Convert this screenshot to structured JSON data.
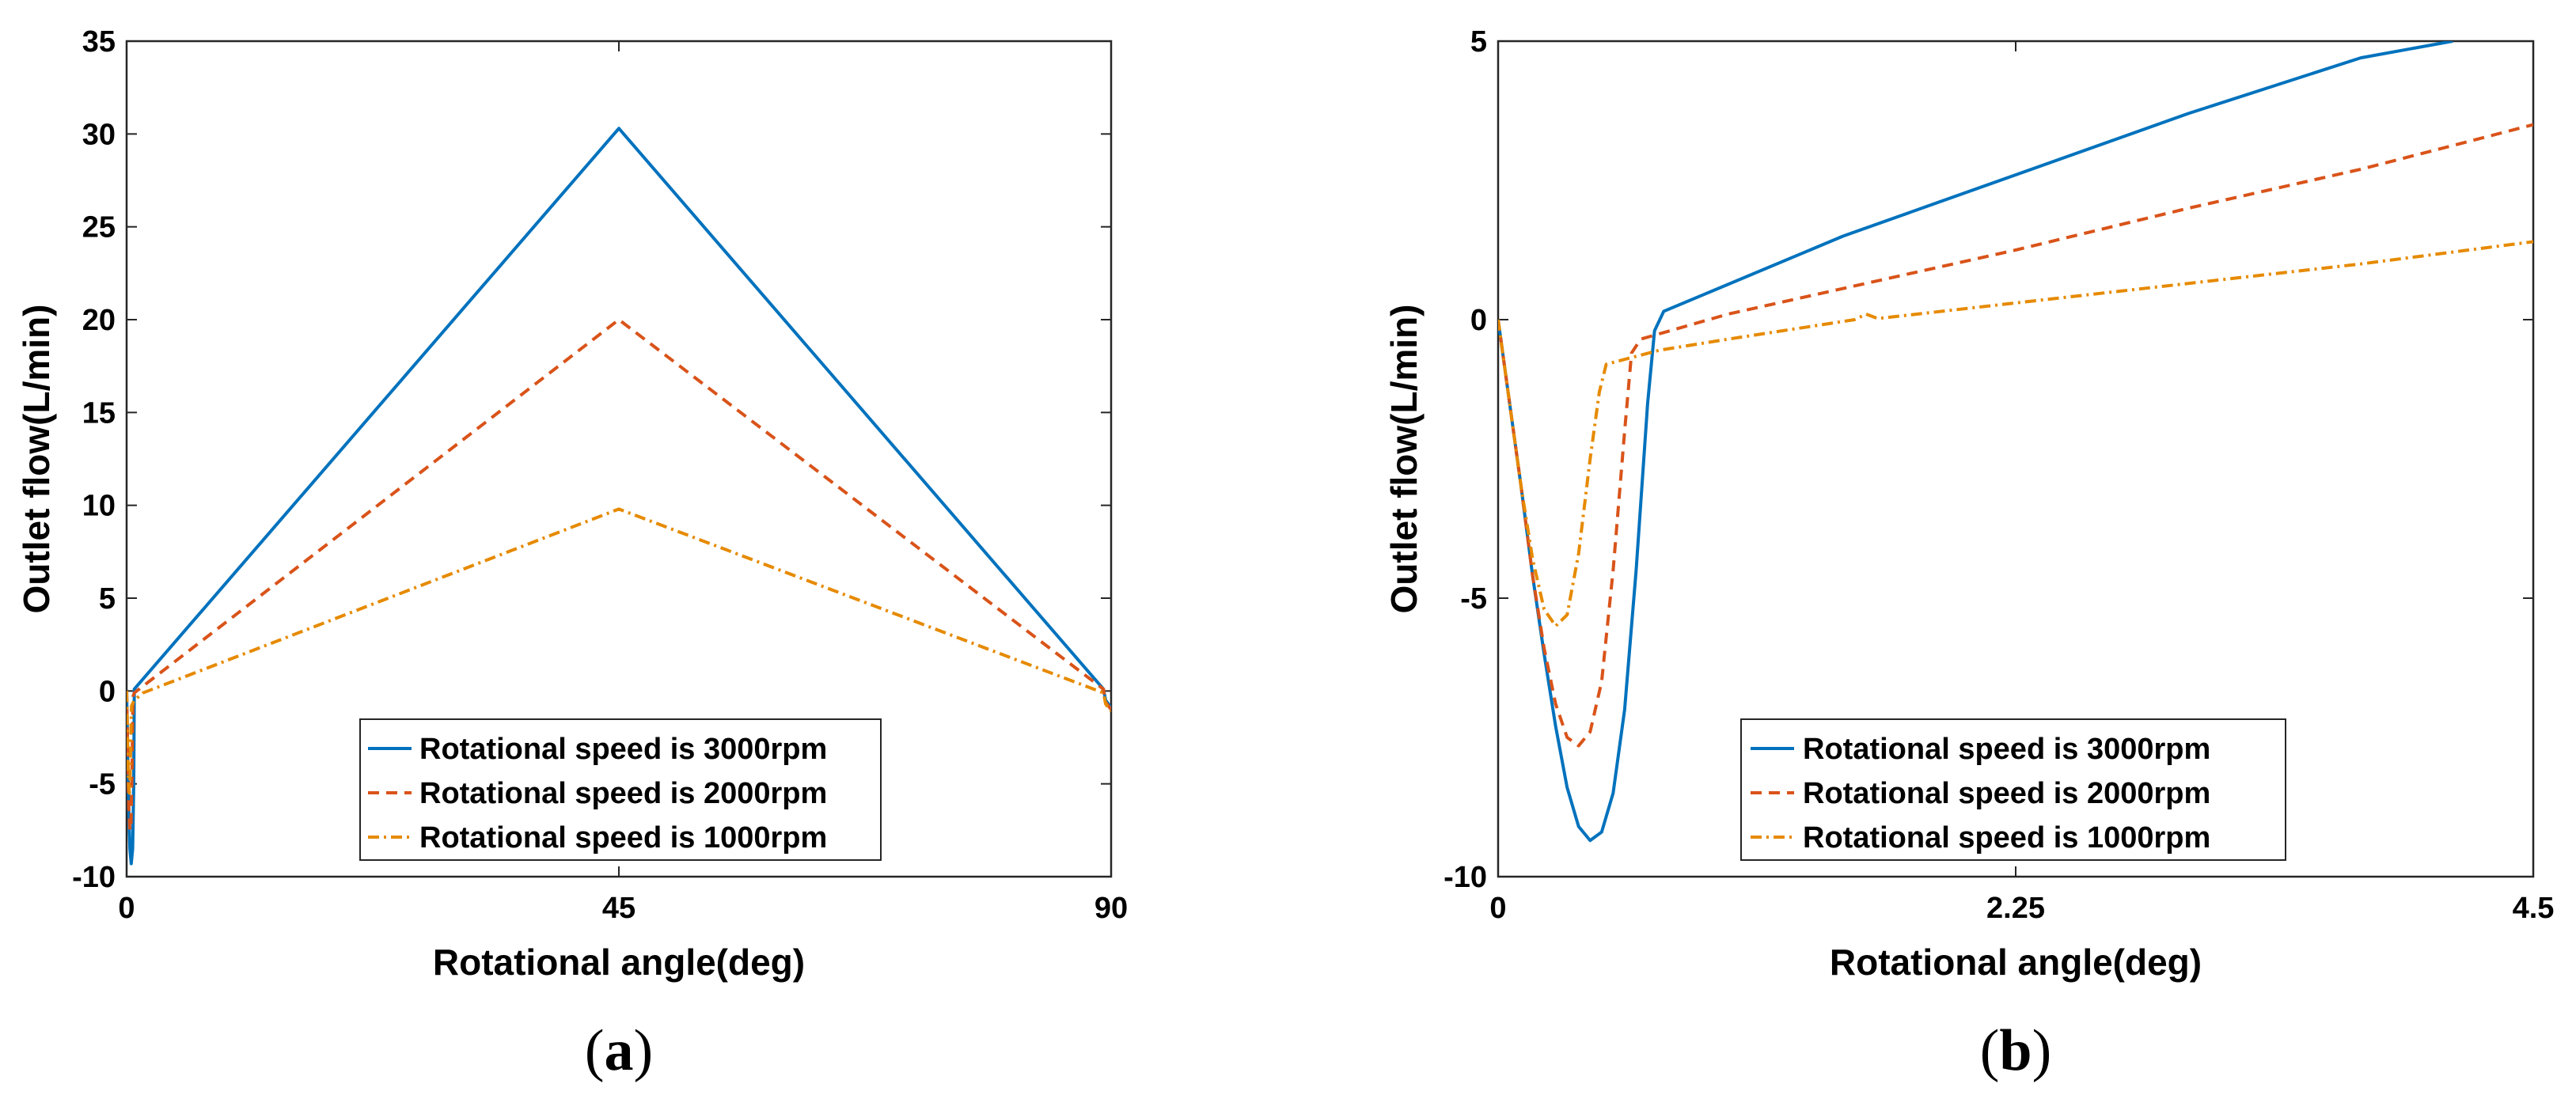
{
  "chart_data": [
    {
      "type": "line",
      "panel": "a",
      "caption": {
        "open": "(",
        "letter": "a",
        "close": ")"
      },
      "xlabel": "Rotational angle(deg)",
      "ylabel": "Outlet flow(L/min)",
      "xlim": [
        0,
        90
      ],
      "ylim": [
        -10,
        35
      ],
      "xticks": [
        0,
        45,
        90
      ],
      "xtick_labels": [
        "0",
        "45",
        "90"
      ],
      "yticks": [
        -10,
        -5,
        0,
        5,
        10,
        15,
        20,
        25,
        30,
        35
      ],
      "ytick_labels": [
        "-10",
        "-5",
        "0",
        "5",
        "10",
        "15",
        "20",
        "25",
        "30",
        "35"
      ],
      "legend_position": "bottom-center",
      "series": [
        {
          "name": "Rotational speed is 3000rpm",
          "color": "#0072BD",
          "style": "solid",
          "points": [
            [
              0,
              0
            ],
            [
              0.1,
              -3.5
            ],
            [
              0.2,
              -6.5
            ],
            [
              0.3,
              -8.5
            ],
            [
              0.42,
              -9.3
            ],
            [
              0.55,
              -8.5
            ],
            [
              0.65,
              -5
            ],
            [
              0.7,
              0.1
            ],
            [
              45,
              30.3
            ],
            [
              89.3,
              0.1
            ],
            [
              89.5,
              -0.5
            ],
            [
              90,
              -0.9
            ]
          ]
        },
        {
          "name": "Rotational speed is 2000rpm",
          "color": "#D95319",
          "style": "dashed",
          "points": [
            [
              0,
              0
            ],
            [
              0.1,
              -3.5
            ],
            [
              0.2,
              -6.3
            ],
            [
              0.3,
              -7.5
            ],
            [
              0.4,
              -7.2
            ],
            [
              0.5,
              -4
            ],
            [
              0.58,
              -0.3
            ],
            [
              0.7,
              -0.1
            ],
            [
              45,
              20
            ],
            [
              89.3,
              0.1
            ],
            [
              89.5,
              -0.6
            ],
            [
              90,
              -1
            ]
          ]
        },
        {
          "name": "Rotational speed is 1000rpm",
          "color": "#EDB120",
          "stroke": "#E68A00",
          "style": "dashdot",
          "points": [
            [
              0,
              0
            ],
            [
              0.1,
              -3
            ],
            [
              0.2,
              -5.2
            ],
            [
              0.26,
              -5.5
            ],
            [
              0.3,
              -5.2
            ],
            [
              0.38,
              -2.5
            ],
            [
              0.45,
              -0.8
            ],
            [
              0.7,
              -0.5
            ],
            [
              1.5,
              -0.1
            ],
            [
              45,
              9.8
            ],
            [
              89.3,
              -0.1
            ],
            [
              89.5,
              -0.7
            ],
            [
              90,
              -1.1
            ]
          ]
        }
      ]
    },
    {
      "type": "line",
      "panel": "b",
      "caption": {
        "open": "(",
        "letter": "b",
        "close": ")"
      },
      "xlabel": "Rotational angle(deg)",
      "ylabel": "Outlet flow(L/min)",
      "xlim": [
        0,
        4.5
      ],
      "ylim": [
        -10,
        5
      ],
      "xticks": [
        0,
        2.25,
        4.5
      ],
      "xtick_labels": [
        "0",
        "2.25",
        "4.5"
      ],
      "yticks": [
        -10,
        -5,
        0,
        5
      ],
      "ytick_labels": [
        "-10",
        "-5",
        "0",
        "5"
      ],
      "legend_position": "bottom-center",
      "series": [
        {
          "name": "Rotational speed is 3000rpm",
          "color": "#0072BD",
          "style": "solid",
          "points": [
            [
              0,
              0
            ],
            [
              0.05,
              -1.5
            ],
            [
              0.1,
              -3
            ],
            [
              0.15,
              -4.6
            ],
            [
              0.2,
              -6
            ],
            [
              0.25,
              -7.3
            ],
            [
              0.3,
              -8.4
            ],
            [
              0.35,
              -9.1
            ],
            [
              0.4,
              -9.35
            ],
            [
              0.45,
              -9.2
            ],
            [
              0.5,
              -8.5
            ],
            [
              0.55,
              -7
            ],
            [
              0.6,
              -4.5
            ],
            [
              0.65,
              -1.5
            ],
            [
              0.68,
              -0.2
            ],
            [
              0.72,
              0.15
            ],
            [
              1.5,
              1.5
            ],
            [
              2.25,
              2.6
            ],
            [
              3.0,
              3.7
            ],
            [
              3.75,
              4.7
            ],
            [
              4.15,
              5.0
            ]
          ]
        },
        {
          "name": "Rotational speed is 2000rpm",
          "color": "#D95319",
          "style": "dashed",
          "points": [
            [
              0,
              0
            ],
            [
              0.05,
              -1.5
            ],
            [
              0.1,
              -3
            ],
            [
              0.15,
              -4.6
            ],
            [
              0.2,
              -5.9
            ],
            [
              0.25,
              -6.9
            ],
            [
              0.3,
              -7.5
            ],
            [
              0.35,
              -7.65
            ],
            [
              0.4,
              -7.4
            ],
            [
              0.45,
              -6.5
            ],
            [
              0.5,
              -4.5
            ],
            [
              0.55,
              -2
            ],
            [
              0.58,
              -0.6
            ],
            [
              0.62,
              -0.35
            ],
            [
              1.0,
              0.1
            ],
            [
              2.25,
              1.25
            ],
            [
              3.0,
              2.0
            ],
            [
              3.75,
              2.7
            ],
            [
              4.5,
              3.5
            ]
          ]
        },
        {
          "name": "Rotational speed is 1000rpm",
          "color": "#EDB120",
          "stroke": "#E68A00",
          "style": "dashdot",
          "points": [
            [
              0,
              0
            ],
            [
              0.05,
              -1.5
            ],
            [
              0.1,
              -3
            ],
            [
              0.15,
              -4.3
            ],
            [
              0.2,
              -5.2
            ],
            [
              0.25,
              -5.5
            ],
            [
              0.3,
              -5.3
            ],
            [
              0.35,
              -4.2
            ],
            [
              0.4,
              -2.5
            ],
            [
              0.44,
              -1.3
            ],
            [
              0.47,
              -0.8
            ],
            [
              0.7,
              -0.55
            ],
            [
              1.0,
              -0.35
            ],
            [
              1.55,
              0.0
            ],
            [
              1.6,
              0.1
            ],
            [
              1.65,
              0.02
            ],
            [
              2.25,
              0.3
            ],
            [
              3.0,
              0.65
            ],
            [
              3.75,
              1.0
            ],
            [
              4.5,
              1.4
            ]
          ]
        }
      ]
    }
  ]
}
